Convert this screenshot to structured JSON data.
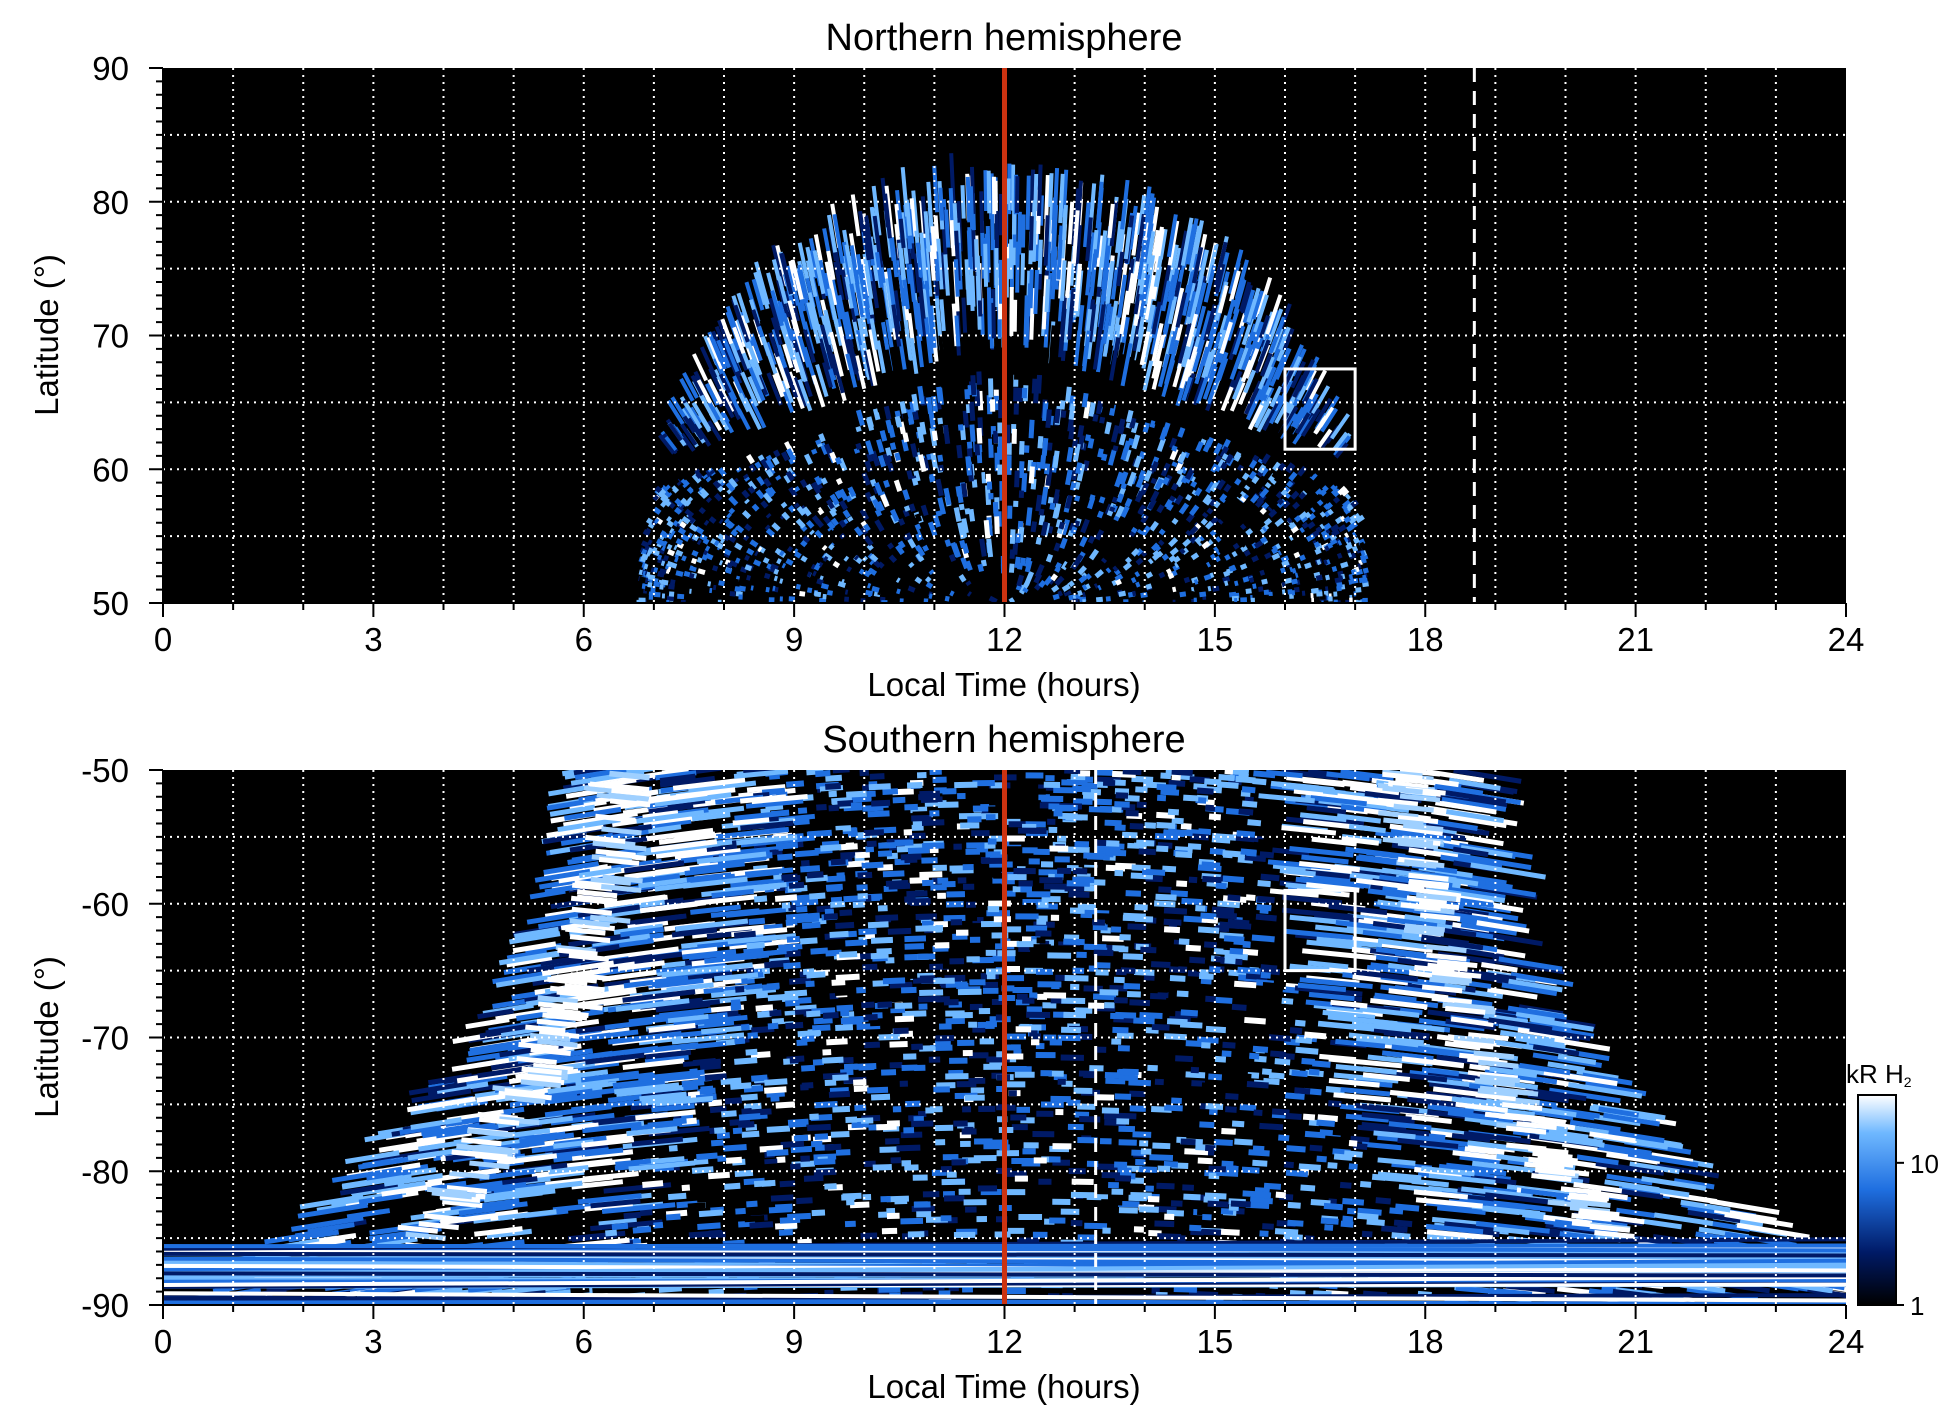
{
  "chart_data": [
    {
      "type": "heatmap",
      "title": "Northern hemisphere",
      "xlabel": "Local Time (hours)",
      "ylabel": "Latitude (°)",
      "xlim": [
        0,
        24
      ],
      "ylim": [
        50,
        90
      ],
      "x_ticks": [
        "0",
        "3",
        "6",
        "9",
        "12",
        "15",
        "18",
        "21",
        "24"
      ],
      "y_ticks": [
        "50",
        "60",
        "70",
        "80",
        "90"
      ],
      "grid": true,
      "background": "#000000",
      "emission_region": {
        "description": "dome of auroral emission",
        "lt_range_at_50": [
          7.0,
          17.3
        ],
        "peak_latitude": 80,
        "peak_lt": 12,
        "dark_ring_latitude": 68
      },
      "noon_line": {
        "lt": 12,
        "color": "#cc3311"
      },
      "dashed_line": {
        "lt": 18.7,
        "color": "#ffffff"
      },
      "box": {
        "lt": [
          16,
          17
        ],
        "lat": [
          61.5,
          67.5
        ],
        "color": "#ffffff"
      }
    },
    {
      "type": "heatmap",
      "title": "Southern hemisphere",
      "xlabel": "Local Time (hours)",
      "ylabel": "Latitude (°)",
      "xlim": [
        0,
        24
      ],
      "ylim": [
        -90,
        -50
      ],
      "x_ticks": [
        "0",
        "3",
        "6",
        "9",
        "12",
        "15",
        "18",
        "21",
        "24"
      ],
      "y_ticks": [
        "-50",
        "-60",
        "-70",
        "-80",
        "-90"
      ],
      "grid": true,
      "background": "#000000",
      "emission_region": {
        "description": "emission widening toward the pole",
        "lt_range_at_minus50": [
          5.5,
          18.5
        ],
        "bright_arcs_lt": [
          6.5,
          17.8
        ]
      },
      "noon_line": {
        "lt": 12,
        "color": "#cc3311"
      },
      "dashed_line": {
        "lt": 13.3,
        "color": "#ffffff"
      },
      "box": {
        "lt": [
          16,
          17
        ],
        "lat": [
          -65,
          -59
        ],
        "color": "#ffffff"
      }
    }
  ],
  "colorbar": {
    "label_main": "kR H",
    "label_sub": "2",
    "scale": "log",
    "range": [
      1,
      30
    ],
    "ticks": [
      "1",
      "10"
    ],
    "colors": [
      "#000000",
      "#001a66",
      "#1f6fe0",
      "#6fb8ff",
      "#ffffff"
    ]
  }
}
